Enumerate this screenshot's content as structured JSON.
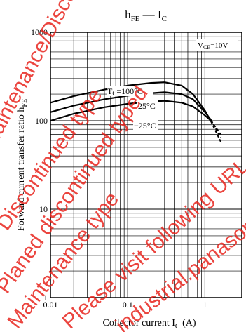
{
  "chart_data": {
    "type": "line",
    "title": {
      "main": "h",
      "main_sub": "FE",
      "dash": " — ",
      "var": "I",
      "var_sub": "C"
    },
    "xlabel": {
      "text": "Collector current  I",
      "sub": "C",
      "unit": "  (A)"
    },
    "ylabel": {
      "text": "Forward current transfer ratio  h",
      "sub": "FE"
    },
    "x_scale": "log",
    "y_scale": "log",
    "xlim": [
      0.01,
      3
    ],
    "ylim": [
      1,
      1000
    ],
    "x_ticks": [
      {
        "value": 0.01,
        "label": "0.01"
      },
      {
        "value": 0.1,
        "label": "0.1"
      },
      {
        "value": 1,
        "label": "1"
      }
    ],
    "y_ticks": [
      {
        "value": 1,
        "label": "1"
      },
      {
        "value": 10,
        "label": "10"
      },
      {
        "value": 100,
        "label": "100"
      },
      {
        "value": 1000,
        "label": "1000"
      }
    ],
    "grid": true,
    "condition": {
      "text": "V",
      "sub": "CE",
      "rest": "=10V"
    },
    "series": [
      {
        "name": "TC=100°C",
        "label": {
          "main": "T",
          "sub": "C",
          "rest": "=100°C"
        },
        "points": [
          [
            0.01,
            160
          ],
          [
            0.02,
            190
          ],
          [
            0.05,
            225
          ],
          [
            0.1,
            250
          ],
          [
            0.2,
            268
          ],
          [
            0.3,
            272
          ],
          [
            0.5,
            250
          ],
          [
            0.7,
            200
          ],
          [
            1.0,
            130
          ],
          [
            1.2,
            98
          ]
        ]
      },
      {
        "name": "25°C",
        "label": {
          "main": "25°C"
        },
        "points": [
          [
            0.01,
            125
          ],
          [
            0.02,
            148
          ],
          [
            0.05,
            175
          ],
          [
            0.1,
            192
          ],
          [
            0.2,
            205
          ],
          [
            0.3,
            210
          ],
          [
            0.5,
            200
          ],
          [
            0.7,
            175
          ],
          [
            1.0,
            125
          ],
          [
            1.2,
            102
          ]
        ]
      },
      {
        "name": "−25°C",
        "label": {
          "main": "−25°C"
        },
        "points": [
          [
            0.01,
            100
          ],
          [
            0.02,
            120
          ],
          [
            0.05,
            142
          ],
          [
            0.1,
            155
          ],
          [
            0.2,
            165
          ],
          [
            0.3,
            168
          ],
          [
            0.5,
            160
          ],
          [
            0.7,
            145
          ],
          [
            1.0,
            115
          ],
          [
            1.2,
            100
          ]
        ]
      }
    ],
    "extrapolated_segments": [
      {
        "series": "TC=100°C",
        "points": [
          [
            1.2,
            98
          ],
          [
            1.6,
            58
          ]
        ]
      },
      {
        "series": "25°C",
        "points": [
          [
            1.2,
            102
          ],
          [
            1.6,
            64
          ]
        ]
      },
      {
        "series": "−25°C",
        "points": [
          [
            1.2,
            100
          ],
          [
            1.6,
            70
          ]
        ]
      }
    ],
    "colors": {
      "line": "#000000",
      "grid": "#000000",
      "background": "#ffffff",
      "watermark": "#e8251d"
    },
    "watermark": [
      "Maintenance/Discontinued",
      "Discontinued type",
      "Planed discontinued typed",
      "Maintenance type",
      "Please visit following URL about latest information.",
      "industrial.panasonic.com/ww/semiconductors/en"
    ]
  }
}
